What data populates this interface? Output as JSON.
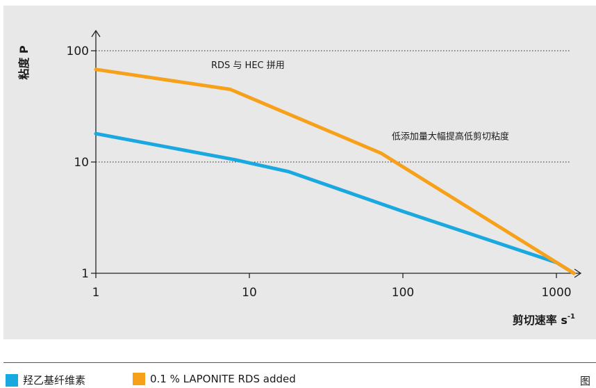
{
  "chart_data": {
    "type": "line",
    "x_scale": "log",
    "y_scale": "log",
    "xlim": [
      1,
      1300
    ],
    "ylim": [
      1,
      150
    ],
    "x_ticks": [
      "1",
      "10",
      "100",
      "1000"
    ],
    "y_ticks": [
      "1",
      "10",
      "100"
    ],
    "xlabel": "剪切速率 s",
    "xlabel_superscript": "-1",
    "ylabel": "粘度 P",
    "grid": "dotted horizontal lines at 10 and 100",
    "series": [
      {
        "name": "羟乙基纤维素",
        "color": "#1aa8e0",
        "x": [
          1,
          8,
          18,
          100,
          1000,
          1300
        ],
        "y": [
          18,
          10.5,
          8.2,
          3.6,
          1.25,
          1.0
        ]
      },
      {
        "name": "0.1 % LAPONITE RDS added",
        "color": "#f7a11a",
        "x": [
          1,
          7.5,
          72,
          1300
        ],
        "y": [
          68,
          45,
          12,
          1.0
        ]
      }
    ],
    "annotations": [
      {
        "text": "RDS 与 HEC 拼用",
        "x": 10,
        "y": 70
      },
      {
        "text": "低添加量大幅提高低剪切粘度",
        "x": 150,
        "y": 16
      }
    ],
    "legend_position": "bottom-left"
  },
  "figure_label": "图"
}
